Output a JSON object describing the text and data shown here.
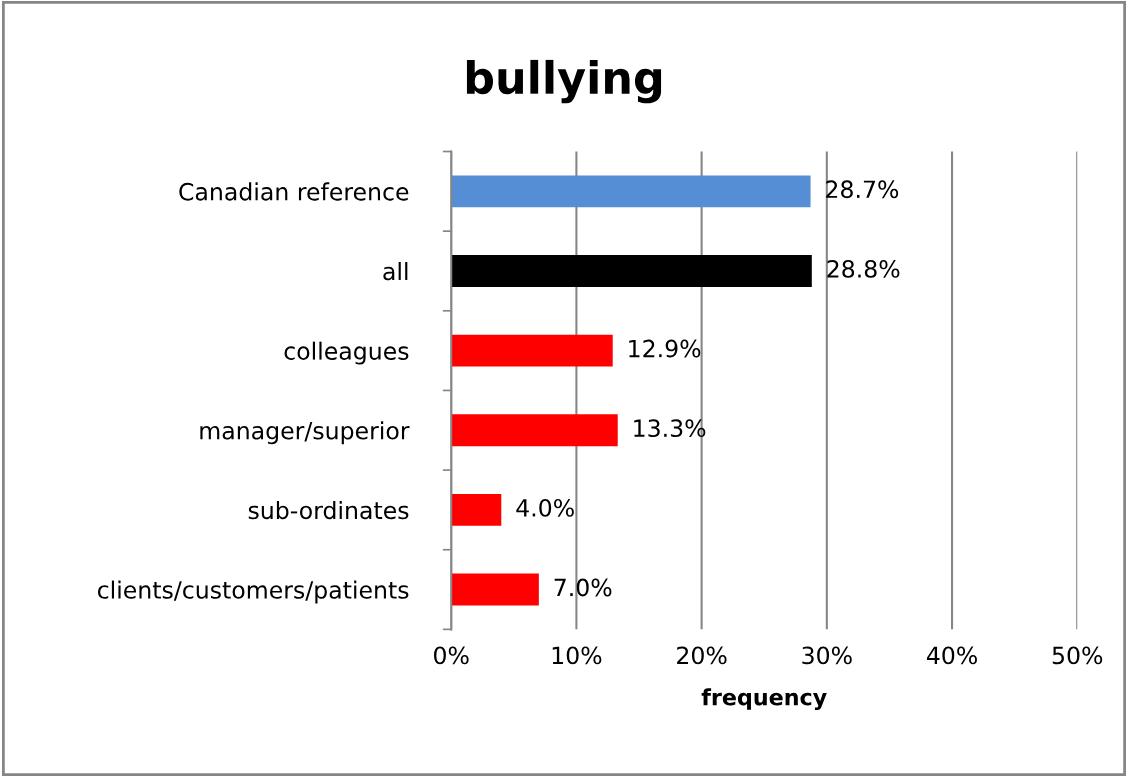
{
  "chart_data": {
    "type": "bar",
    "orientation": "horizontal",
    "title": "bullying",
    "xlabel": "frequency",
    "categories": [
      "Canadian reference",
      "all",
      "colleagues",
      "manager/superior",
      "sub-ordinates",
      "clients/customers/patients"
    ],
    "values": [
      28.7,
      28.8,
      12.9,
      13.3,
      4.0,
      7.0
    ],
    "colors": [
      "#558ed5",
      "#000000",
      "#ff0000",
      "#ff0000",
      "#ff0000",
      "#ff0000"
    ],
    "value_labels": [
      "28.7%",
      "28.8%",
      "12.9%",
      "13.3%",
      "4.0%",
      "7.0%"
    ],
    "xlim": [
      0,
      50
    ],
    "xticks": [
      {
        "value": 0,
        "label": "0%"
      },
      {
        "value": 10,
        "label": "10%"
      },
      {
        "value": 20,
        "label": "20%"
      },
      {
        "value": 30,
        "label": "30%"
      },
      {
        "value": 40,
        "label": "40%"
      },
      {
        "value": 50,
        "label": "50%"
      }
    ],
    "grid": "x",
    "legend": false
  }
}
